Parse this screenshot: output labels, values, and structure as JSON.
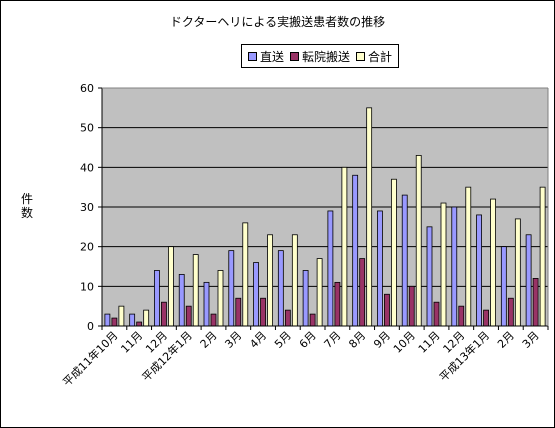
{
  "chart_data": {
    "type": "bar",
    "title": "ドクターヘリによる実搬送患者数の推移",
    "ylabel": "件数",
    "xlabel": "",
    "ylim": [
      0,
      60
    ],
    "yticks": [
      0,
      10,
      20,
      30,
      40,
      50,
      60
    ],
    "grid": true,
    "legend_position": "top",
    "categories": [
      "平成11年10月",
      "11月",
      "12月",
      "平成12年1月",
      "2月",
      "3月",
      "4月",
      "5月",
      "6月",
      "7月",
      "8月",
      "9月",
      "10月",
      "11月",
      "12月",
      "平成13年1月",
      "2月",
      "3月"
    ],
    "series": [
      {
        "name": "直送",
        "color": "#9999ff",
        "values": [
          3,
          3,
          14,
          13,
          11,
          19,
          16,
          19,
          14,
          29,
          38,
          29,
          33,
          25,
          30,
          28,
          20,
          23
        ]
      },
      {
        "name": "転院搬送",
        "color": "#993366",
        "values": [
          2,
          1,
          6,
          5,
          3,
          7,
          7,
          4,
          3,
          11,
          17,
          8,
          10,
          6,
          5,
          4,
          7,
          12
        ]
      },
      {
        "name": "合計",
        "color": "#ffffcc",
        "values": [
          5,
          4,
          20,
          18,
          14,
          26,
          23,
          23,
          17,
          40,
          55,
          37,
          43,
          31,
          35,
          32,
          27,
          35
        ]
      }
    ]
  }
}
